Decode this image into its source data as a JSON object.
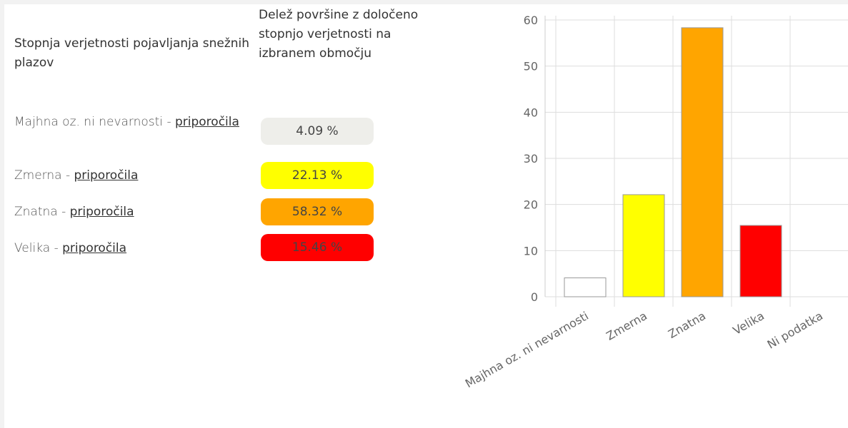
{
  "table": {
    "headers": [
      "Stopnja verjetnosti pojavljanja snežnih plazov",
      "Delež površine z določeno stopnjo verjetnosti na izbranem območju"
    ],
    "rows": [
      {
        "label": "Majhna oz. ni nevarnosti -",
        "link": "priporočila",
        "share": "4.09 %",
        "color": "#eeeeea"
      },
      {
        "label": "Zmerna -",
        "link": "priporočila",
        "share": "22.13 %",
        "color": "#ffff00"
      },
      {
        "label": "Znatna -",
        "link": "priporočila",
        "share": "58.32 %",
        "color": "#ffa500"
      },
      {
        "label": "Velika -",
        "link": "priporočila",
        "share": "15.46 %",
        "color": "#ff0000"
      }
    ]
  },
  "chart_data": {
    "type": "bar",
    "categories": [
      "Majhna oz. ni nevarnosti",
      "Zmerna",
      "Znatna",
      "Velika",
      "Ni podatka"
    ],
    "values": [
      4.09,
      22.13,
      58.32,
      15.46,
      0
    ],
    "colors": [
      "#ffffff",
      "#ffff00",
      "#ffa500",
      "#ff0000",
      "#cccccc"
    ],
    "ylim": [
      0,
      60
    ],
    "yticks": [
      0,
      10,
      20,
      30,
      40,
      50,
      60
    ],
    "grid": true
  }
}
